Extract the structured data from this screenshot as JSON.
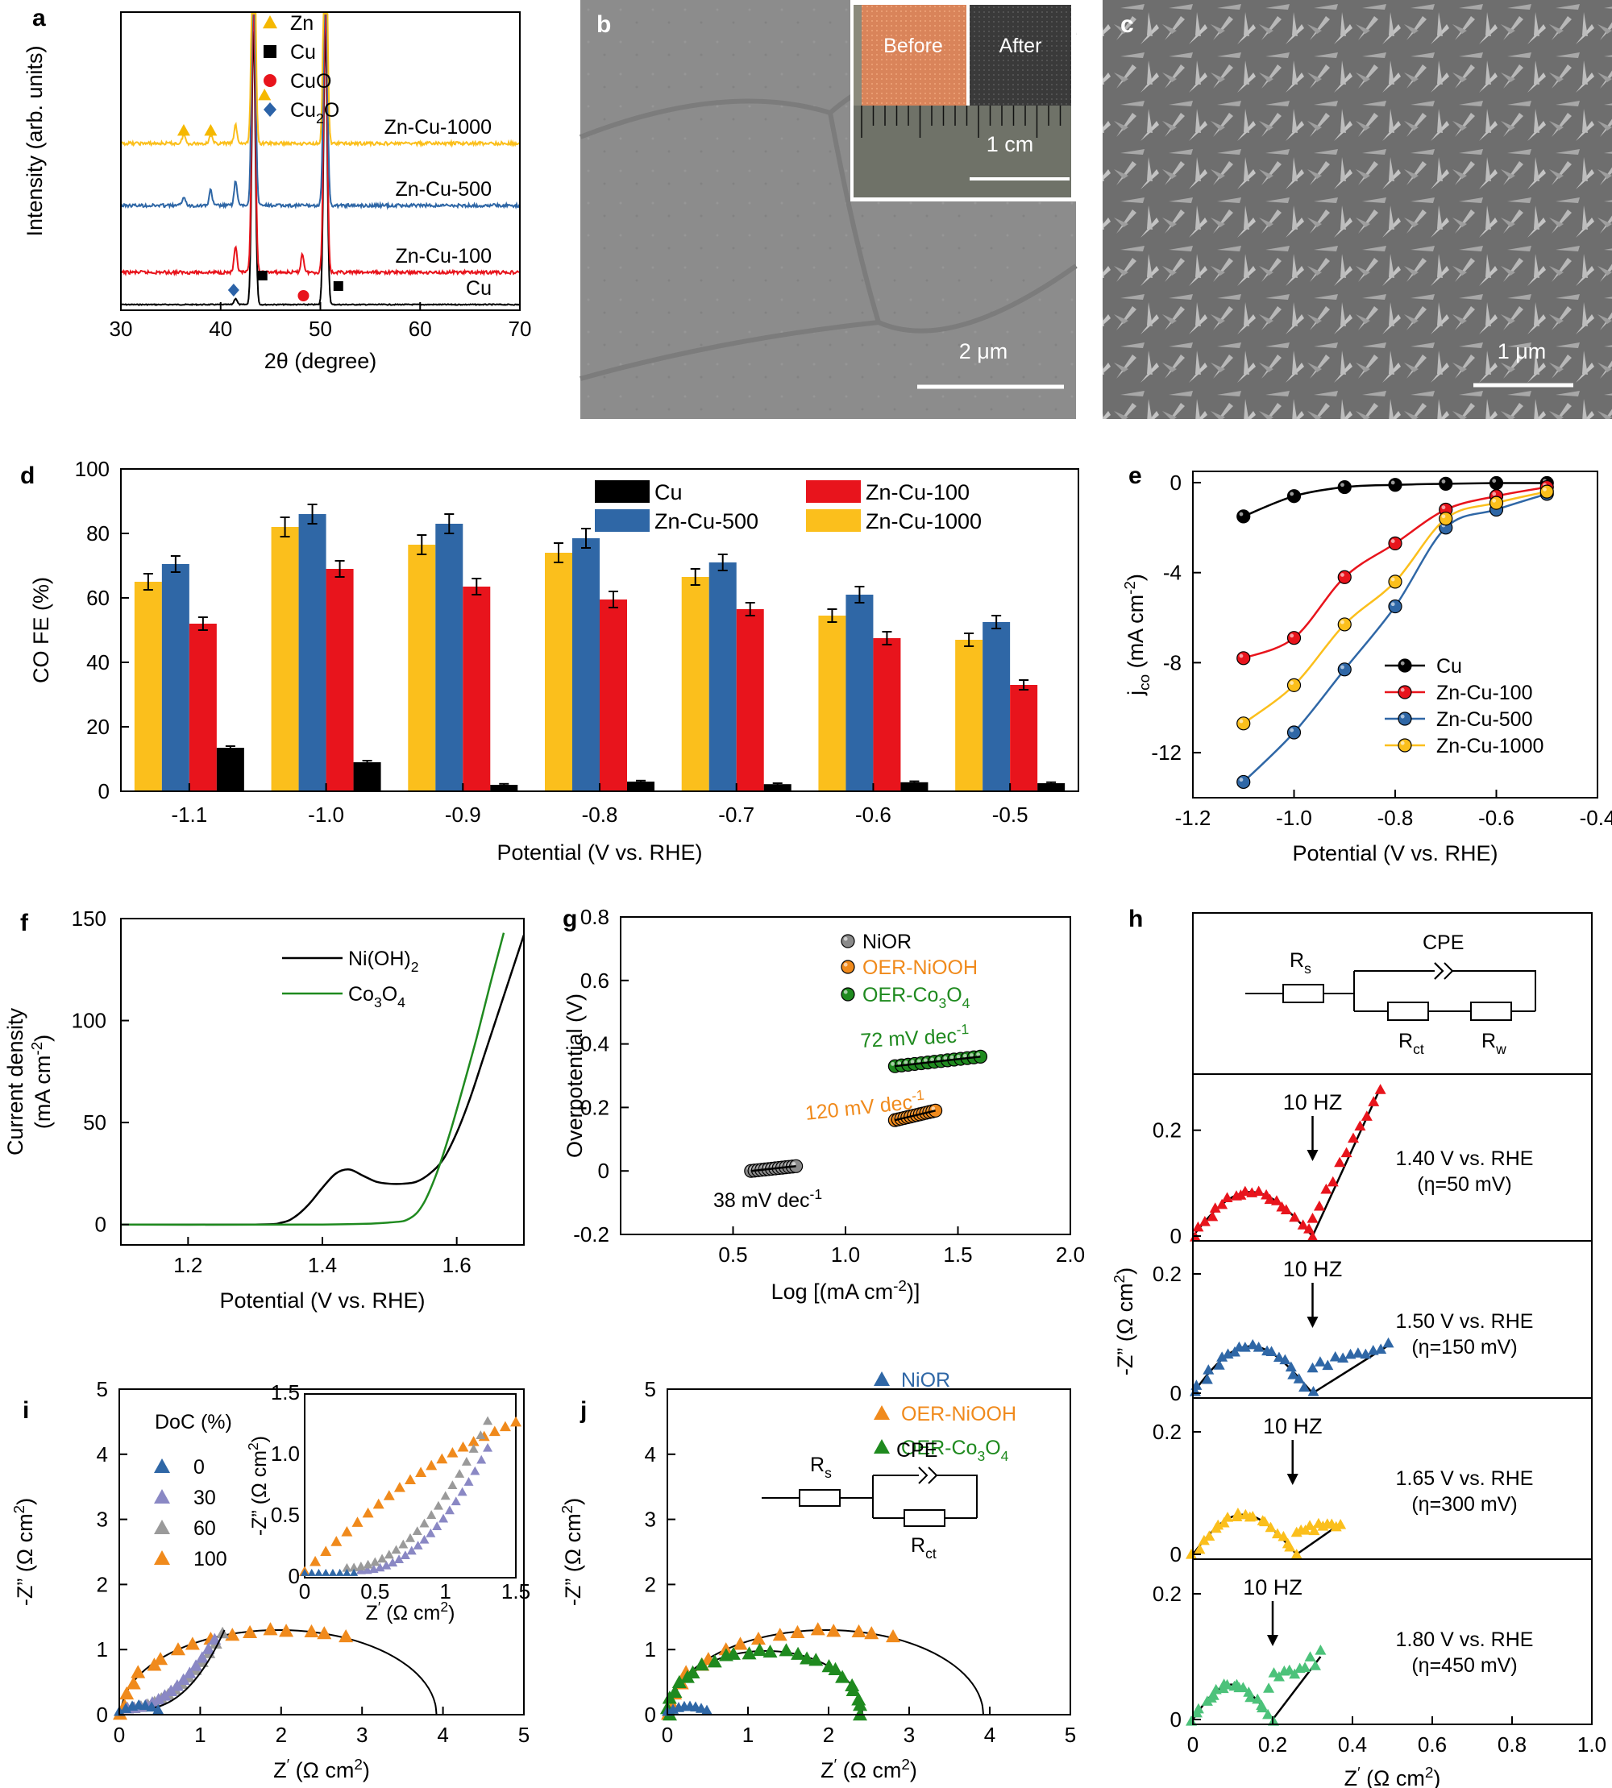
{
  "colors": {
    "zn": "#f5b800",
    "cu": "#000000",
    "cuo": "#e8141c",
    "cu2o": "#2c63a8",
    "znc100": "#e8141c",
    "znc500": "#2f67a6",
    "znc1000": "#fbbf1c",
    "green": "#1f8a1f",
    "orange": "#f08a1c",
    "gray": "#8a8a8a",
    "blue": "#2f67a6"
  },
  "chart_data": [
    {
      "id": "a",
      "type": "line",
      "panel_label": "a",
      "xlabel": "2θ (degree)",
      "ylabel": "Intensity (arb. units)",
      "xlim": [
        30,
        70
      ],
      "xticks": [
        "30",
        "40",
        "50",
        "60",
        "70"
      ],
      "legend": [
        {
          "name": "Zn",
          "marker": "triangle"
        },
        {
          "name": "Cu",
          "marker": "square"
        },
        {
          "name": "CuO",
          "marker": "circle"
        },
        {
          "name": "Cu2O",
          "marker": "diamond"
        }
      ],
      "legend_sub": "2",
      "series": [
        {
          "name": "Cu",
          "label": "Cu",
          "offset": 0,
          "peaks": [
            [
              41.5,
              0.2
            ],
            [
              43.3,
              9.0
            ],
            [
              50.5,
              9.0
            ]
          ]
        },
        {
          "name": "Zn-Cu-100",
          "label": "Zn-Cu-100",
          "offset": 1,
          "peaks": [
            [
              41.5,
              0.8
            ],
            [
              43.3,
              9.0
            ],
            [
              48.2,
              0.6
            ],
            [
              50.5,
              9.0
            ]
          ]
        },
        {
          "name": "Zn-Cu-500",
          "label": "Zn-Cu-500",
          "offset": 2,
          "peaks": [
            [
              36.3,
              0.3
            ],
            [
              39.0,
              0.5
            ],
            [
              41.5,
              0.8
            ],
            [
              43.3,
              9.0
            ],
            [
              50.5,
              9.0
            ]
          ]
        },
        {
          "name": "Zn-Cu-1000",
          "label": "Zn-Cu-1000",
          "offset": 3,
          "peaks": [
            [
              36.3,
              0.3
            ],
            [
              39.0,
              0.3
            ],
            [
              41.5,
              0.6
            ],
            [
              43.3,
              9.0
            ],
            [
              50.5,
              9.0
            ]
          ]
        }
      ],
      "annotations": [
        {
          "label": "Zn",
          "x": 36.3
        },
        {
          "label": "Zn",
          "x": 39.0
        },
        {
          "label": "Zn",
          "x": 44.4
        },
        {
          "label": "Cu2O",
          "x": 41.3
        },
        {
          "label": "Cu",
          "x": 44.2
        },
        {
          "label": "CuO",
          "x": 48.3
        },
        {
          "label": "Cu",
          "x": 51.8
        }
      ]
    },
    {
      "id": "b",
      "type": "table",
      "panel_label": "b",
      "content": "SEM image",
      "scale_bar": "2 μm",
      "inset_before": "Before",
      "inset_after": "After",
      "inset_scale": "1 cm"
    },
    {
      "id": "c",
      "type": "table",
      "panel_label": "c",
      "content": "SEM image",
      "scale_bar": "1 μm"
    },
    {
      "id": "d",
      "type": "bar",
      "panel_label": "d",
      "xlabel": "Potential (V vs. RHE)",
      "ylabel": "CO FE (%)",
      "ylim": [
        0,
        100
      ],
      "yticks": [
        "0",
        "20",
        "40",
        "60",
        "80",
        "100"
      ],
      "categories": [
        "-1.1",
        "-1.0",
        "-0.9",
        "-0.8",
        "-0.7",
        "-0.6",
        "-0.5"
      ],
      "series": [
        {
          "name": "Zn-Cu-1000",
          "values": [
            65,
            82,
            76.5,
            74,
            66.5,
            54.5,
            47
          ],
          "errors": [
            2.5,
            3,
            3,
            3,
            2.5,
            2,
            2
          ]
        },
        {
          "name": "Zn-Cu-500",
          "values": [
            70.5,
            86,
            83,
            78.5,
            71,
            61,
            52.5
          ],
          "errors": [
            2.5,
            3,
            3,
            3,
            2.5,
            2.5,
            2
          ]
        },
        {
          "name": "Zn-Cu-100",
          "values": [
            52,
            69,
            63.5,
            59.5,
            56.5,
            47.5,
            33
          ],
          "errors": [
            2,
            2.5,
            2.5,
            2.5,
            2,
            2,
            1.5
          ]
        },
        {
          "name": "Cu",
          "values": [
            13.5,
            9,
            2,
            3,
            2.2,
            2.8,
            2.5
          ],
          "errors": [
            0.5,
            0.5,
            0.3,
            0.3,
            0.3,
            0.3,
            0.3
          ]
        }
      ],
      "legend_order": [
        "Cu",
        "Zn-Cu-100",
        "Zn-Cu-500",
        "Zn-Cu-1000"
      ]
    },
    {
      "id": "e",
      "type": "line",
      "panel_label": "e",
      "xlabel": "Potential (V vs. RHE)",
      "ylabel_main": "j",
      "ylabel_sub": "co",
      "ylabel_unit": " (mA cm",
      "xlim": [
        -1.2,
        -0.4
      ],
      "ylim": [
        -14,
        0.5
      ],
      "xticks": [
        "-1.2",
        "-1.0",
        "-0.8",
        "-0.6",
        "-0.4"
      ],
      "yticks": [
        "0",
        "-4",
        "-8",
        "-12"
      ],
      "x": [
        -1.1,
        -1.0,
        -0.9,
        -0.8,
        -0.7,
        -0.6,
        -0.5
      ],
      "series": [
        {
          "name": "Cu",
          "values": [
            -1.5,
            -0.6,
            -0.2,
            -0.1,
            -0.05,
            -0.02,
            -0.02
          ]
        },
        {
          "name": "Zn-Cu-100",
          "values": [
            -7.8,
            -6.9,
            -4.2,
            -2.7,
            -1.2,
            -0.6,
            -0.2
          ]
        },
        {
          "name": "Zn-Cu-500",
          "values": [
            -13.3,
            -11.1,
            -8.3,
            -5.5,
            -2.0,
            -1.2,
            -0.5
          ]
        },
        {
          "name": "Zn-Cu-1000",
          "values": [
            -10.7,
            -9.0,
            -6.3,
            -4.4,
            -1.6,
            -0.9,
            -0.4
          ]
        }
      ]
    },
    {
      "id": "f",
      "type": "line",
      "panel_label": "f",
      "xlabel": "Potential (V vs. RHE)",
      "ylabel1": "Current density",
      "ylabel2": "(mA cm",
      "ylabel_sup": "-2",
      "ylabel_close": ")",
      "xlim": [
        1.1,
        1.7
      ],
      "ylim": [
        -10,
        150
      ],
      "xticks": [
        "1.2",
        "1.4",
        "1.6"
      ],
      "yticks": [
        "0",
        "50",
        "100",
        "150"
      ],
      "series": [
        {
          "name": "Ni(OH)2",
          "label_main": "Ni(OH)",
          "label_sub": "2",
          "x": [
            1.1,
            1.3,
            1.34,
            1.36,
            1.38,
            1.4,
            1.42,
            1.44,
            1.46,
            1.48,
            1.5,
            1.52,
            1.54,
            1.56,
            1.58,
            1.6,
            1.62,
            1.64,
            1.66,
            1.68,
            1.7
          ],
          "values": [
            0,
            0,
            1,
            4,
            10,
            18,
            25,
            27,
            24,
            21,
            20,
            20,
            21,
            25,
            32,
            45,
            62,
            82,
            102,
            122,
            142
          ]
        },
        {
          "name": "Co3O4",
          "label_main": "Co",
          "label_sub": "3",
          "label_mid": "O",
          "label_sub2": "4",
          "x": [
            1.1,
            1.4,
            1.5,
            1.53,
            1.55,
            1.57,
            1.59,
            1.61,
            1.63,
            1.65,
            1.67
          ],
          "values": [
            0,
            0,
            1,
            3,
            10,
            25,
            45,
            68,
            92,
            118,
            143
          ]
        }
      ]
    },
    {
      "id": "g",
      "type": "scatter",
      "panel_label": "g",
      "xlabel": "Log [(mA cm",
      "xlabel_sup": "-2",
      "xlabel_close": ")]",
      "ylabel": "Overpotential (V)",
      "xlim": [
        0,
        2.0
      ],
      "ylim": [
        -0.2,
        0.8
      ],
      "xticks": [
        "0.5",
        "1.0",
        "1.5",
        "2.0"
      ],
      "yticks": [
        "-0.2",
        "0",
        "0.2",
        "0.4",
        "0.6",
        "0.8"
      ],
      "series": [
        {
          "name": "NiOR",
          "x_range": [
            0.58,
            0.78
          ],
          "y_range": [
            0.0,
            0.015
          ],
          "annotation": "38 mV dec",
          "ann_sup": "-1"
        },
        {
          "name": "OER-NiOOH",
          "x_range": [
            1.22,
            1.4
          ],
          "y_range": [
            0.16,
            0.19
          ],
          "annotation": "120 mV dec",
          "ann_sup": "-1"
        },
        {
          "name": "OER-Co3O4",
          "label_main": "OER-Co",
          "label_sub": "3",
          "label_mid": "O",
          "label_sub2": "4",
          "x_range": [
            1.22,
            1.6
          ],
          "y_range": [
            0.33,
            0.36
          ],
          "annotation": "72 mV dec",
          "ann_sup": "-1"
        }
      ]
    },
    {
      "id": "h",
      "type": "scatter",
      "panel_label": "h",
      "xlabel": "Z",
      "xlabel_tail": " (Ω cm",
      "xlabel_sup": "2",
      "xlabel_close": ")",
      "ylabel": "-Z” (Ω cm",
      "ylabel_sup": "2",
      "ylabel_close": ")",
      "xlim": [
        0,
        1.0
      ],
      "xticks": [
        "0",
        "0.2",
        "0.4",
        "0.6",
        "0.8",
        "1.0"
      ],
      "circuit": {
        "rs": "R",
        "rs_sub": "s",
        "cpe": "CPE",
        "rct": "R",
        "rct_sub": "ct",
        "rw": "R",
        "rw_sub": "w"
      },
      "subplots": [
        {
          "potential": "1.40 V vs. RHE",
          "eta": "(η=50 mV)",
          "freq": "10 HZ",
          "freq_x": 0.3,
          "yticks": [
            "0",
            "0.2"
          ],
          "ymax": 0.3,
          "arc_r": 0.15,
          "arc_h": 0.09,
          "tail_end": [
            0.47,
            0.28
          ],
          "tail_start": [
            0.3,
            0.035
          ]
        },
        {
          "potential": "1.50 V vs. RHE",
          "eta": "(η=150 mV)",
          "freq": "10 HZ",
          "freq_x": 0.3,
          "yticks": [
            "0",
            "0.2"
          ],
          "ymax": 0.25,
          "arc_r": 0.15,
          "arc_h": 0.085,
          "tail_end": [
            0.49,
            0.08
          ],
          "tail_start": [
            0.3,
            0.045
          ]
        },
        {
          "potential": "1.65 V vs. RHE",
          "eta": "(η=300 mV)",
          "freq": "10 HZ",
          "freq_x": 0.25,
          "yticks": [
            "0",
            "0.2"
          ],
          "ymax": 0.25,
          "arc_r": 0.13,
          "arc_h": 0.07,
          "tail_end": [
            0.37,
            0.05
          ],
          "tail_start": [
            0.26,
            0.04
          ]
        },
        {
          "potential": "1.80 V vs. RHE",
          "eta": "(η=450 mV)",
          "freq": "10 HZ",
          "freq_x": 0.2,
          "yticks": [
            "0",
            "0.2"
          ],
          "ymax": 0.25,
          "arc_r": 0.1,
          "arc_h": 0.06,
          "tail_end": [
            0.32,
            0.1
          ],
          "tail_start": [
            0.19,
            0.06
          ]
        }
      ]
    },
    {
      "id": "i",
      "type": "scatter",
      "panel_label": "i",
      "xlabel": "Z",
      "xlabel_tail": " (Ω cm",
      "xlabel_sup": "2",
      "xlabel_close": ")",
      "ylabel": "-Z” (Ω cm",
      "ylabel_sup": "2",
      "ylabel_close": ")",
      "xlim": [
        0,
        5
      ],
      "ylim": [
        0,
        5
      ],
      "xticks": [
        "0",
        "1",
        "2",
        "3",
        "4",
        "5"
      ],
      "yticks": [
        "0",
        "1",
        "2",
        "3",
        "4",
        "5"
      ],
      "legend_title": "DoC (%)",
      "series": [
        {
          "name": "0"
        },
        {
          "name": "30"
        },
        {
          "name": "60"
        },
        {
          "name": "100"
        }
      ],
      "inset": {
        "xlim": [
          0,
          1.5
        ],
        "ylim": [
          0,
          1.5
        ],
        "xticks": [
          "0",
          "0.5",
          "1",
          "1.5"
        ],
        "yticks": [
          "0",
          "0.5",
          "1.0",
          "1.5"
        ]
      }
    },
    {
      "id": "j",
      "type": "scatter",
      "panel_label": "j",
      "xlabel": "Z",
      "xlabel_tail": " (Ω cm",
      "xlabel_sup": "2",
      "xlabel_close": ")",
      "ylabel": "-Z” (Ω cm",
      "ylabel_sup": "2",
      "ylabel_close": ")",
      "xlim": [
        0,
        5
      ],
      "ylim": [
        0,
        5
      ],
      "xticks": [
        "0",
        "1",
        "2",
        "3",
        "4",
        "5"
      ],
      "yticks": [
        "0",
        "1",
        "2",
        "3",
        "4",
        "5"
      ],
      "series": [
        {
          "name": "NiOR"
        },
        {
          "name": "OER-NiOOH"
        },
        {
          "name": "OER-Co3O4",
          "label_main": "OER-Co",
          "label_sub": "3",
          "label_mid": "O",
          "label_sub2": "4"
        }
      ],
      "circuit": {
        "rs": "R",
        "rs_sub": "s",
        "cpe": "CPE",
        "rct": "R",
        "rct_sub": "ct"
      }
    }
  ]
}
